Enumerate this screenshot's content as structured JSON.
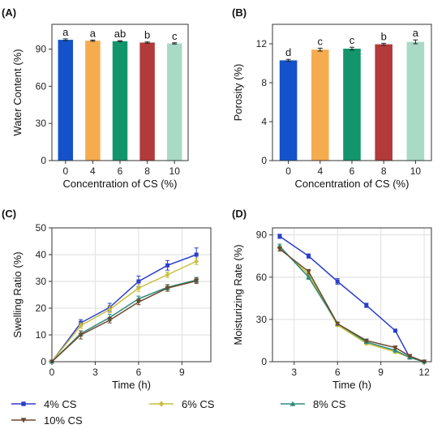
{
  "chart_data": [
    {
      "panel": "(A)",
      "type": "bar",
      "xlabel": "Concentration of CS (%)",
      "ylabel": "Water Content (%)",
      "categories": [
        "0",
        "4",
        "6",
        "8",
        "10"
      ],
      "values": [
        97.5,
        96.8,
        96.4,
        95.3,
        94.6
      ],
      "errors": [
        0.8,
        0.5,
        0.4,
        0.5,
        0.5
      ],
      "letters": [
        "a",
        "a",
        "ab",
        "b",
        "c"
      ],
      "colors": [
        "#1452cc",
        "#f5ac4f",
        "#12956a",
        "#b33a3a",
        "#a9d9c7"
      ],
      "ylim": [
        0,
        110
      ],
      "yticks": [
        0,
        30,
        60,
        90
      ]
    },
    {
      "panel": "(B)",
      "type": "bar",
      "xlabel": "Concentration of CS (%)",
      "ylabel": "Porosity (%)",
      "categories": [
        "0",
        "4",
        "6",
        "8",
        "10"
      ],
      "values": [
        10.3,
        11.4,
        11.5,
        11.95,
        12.2
      ],
      "errors": [
        0.1,
        0.15,
        0.15,
        0.1,
        0.2
      ],
      "letters": [
        "d",
        "c",
        "c",
        "b",
        "a"
      ],
      "colors": [
        "#1452cc",
        "#f5ac4f",
        "#12956a",
        "#b33a3a",
        "#a9d9c7"
      ],
      "ylim": [
        0,
        14
      ],
      "yticks": [
        0,
        4,
        8,
        12
      ]
    },
    {
      "panel": "(C)",
      "type": "line",
      "xlabel": "Time (h)",
      "ylabel": "Swelling Ratio (%)",
      "x": [
        0,
        2,
        4,
        6,
        8,
        10
      ],
      "xlim": [
        0,
        11
      ],
      "ylim": [
        0,
        50
      ],
      "xticks": [
        0,
        3,
        6,
        9
      ],
      "yticks": [
        0,
        10,
        20,
        30,
        40,
        50
      ],
      "series": [
        {
          "name": "4% CS",
          "color": "#2a3ec9",
          "marker": "square",
          "values": [
            0,
            14.5,
            20.3,
            30.0,
            36.0,
            40.0
          ],
          "errors": [
            0,
            1.2,
            1.5,
            2.0,
            1.8,
            2.5
          ]
        },
        {
          "name": "6% CS",
          "color": "#c8bf3a",
          "marker": "diamond",
          "values": [
            0,
            13.5,
            19.5,
            27.5,
            32.5,
            37.5
          ],
          "errors": [
            0,
            1.0,
            1.2,
            1.2,
            1.0,
            1.2
          ]
        },
        {
          "name": "8% CS",
          "color": "#2e8a7c",
          "marker": "triangle-up",
          "values": [
            0,
            10.5,
            16.5,
            23.5,
            27.8,
            30.5
          ],
          "errors": [
            0,
            1.0,
            1.2,
            1.0,
            1.0,
            1.0
          ]
        },
        {
          "name": "10% CS",
          "color": "#6b4a30",
          "marker": "triangle-down",
          "values": [
            0,
            10.0,
            15.5,
            22.3,
            27.5,
            30.2
          ],
          "errors": [
            0,
            1.5,
            1.0,
            1.0,
            1.2,
            1.0
          ]
        }
      ]
    },
    {
      "panel": "(D)",
      "type": "line",
      "xlabel": "Time (h)",
      "ylabel": "Moisturizing Rate (%)",
      "x": [
        2,
        4,
        6,
        8,
        10,
        11,
        12
      ],
      "xlim": [
        1.5,
        12.5
      ],
      "ylim": [
        0,
        95
      ],
      "xticks": [
        3,
        6,
        9,
        12
      ],
      "yticks": [
        0,
        30,
        60,
        90
      ],
      "series": [
        {
          "name": "4% CS",
          "color": "#2a3ec9",
          "marker": "square",
          "values": [
            89,
            75,
            57,
            40,
            22,
            3,
            0
          ],
          "errors": [
            1.5,
            1.5,
            2.0,
            1.5,
            1.0,
            0.5,
            0
          ]
        },
        {
          "name": "6% CS",
          "color": "#c8bf3a",
          "marker": "diamond",
          "values": [
            81,
            62,
            26,
            13,
            7,
            3,
            0
          ],
          "errors": [
            1.5,
            1.5,
            1.0,
            1.0,
            1.0,
            0.5,
            0
          ]
        },
        {
          "name": "8% CS",
          "color": "#2e8a7c",
          "marker": "triangle-up",
          "values": [
            82,
            60,
            27,
            14,
            8,
            3,
            0
          ],
          "errors": [
            1.5,
            1.5,
            1.0,
            1.0,
            1.0,
            0.5,
            0
          ]
        },
        {
          "name": "10% CS",
          "color": "#6b4a30",
          "marker": "triangle-down",
          "values": [
            80,
            64,
            27,
            15,
            10,
            4,
            0
          ],
          "errors": [
            1.5,
            1.5,
            1.0,
            1.0,
            1.0,
            0.5,
            0
          ]
        }
      ]
    }
  ],
  "legend": {
    "entries": [
      "4% CS",
      "6% CS",
      "8% CS",
      "10% CS"
    ],
    "placement": "bottom"
  }
}
